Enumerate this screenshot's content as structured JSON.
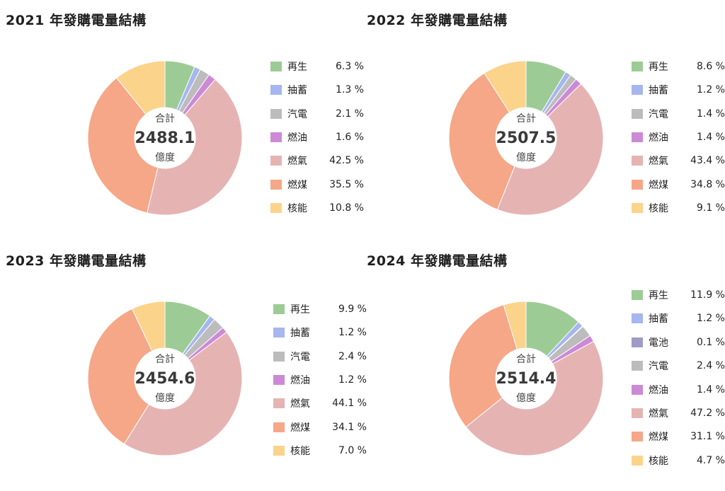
{
  "unit_caption": "合計",
  "unit_label": "億度",
  "chart_data": [
    {
      "type": "pie",
      "title": "2021 年發購電量結構",
      "total": "2488.1",
      "categories": [
        "再生",
        "抽蓄",
        "汽電",
        "燃油",
        "燃氣",
        "燃煤",
        "核能"
      ],
      "values": [
        6.3,
        1.3,
        2.1,
        1.6,
        42.5,
        35.5,
        10.8
      ],
      "labels": [
        "6.3 %",
        "1.3 %",
        "2.1 %",
        "1.6 %",
        "42.5 %",
        "35.5 %",
        "10.8 %"
      ],
      "colors": [
        "#9dcb95",
        "#a6b6ee",
        "#bcbcbc",
        "#cc8ad6",
        "#e6b3b3",
        "#f5a787",
        "#fbd38b"
      ]
    },
    {
      "type": "pie",
      "title": "2022 年發購電量結構",
      "total": "2507.5",
      "categories": [
        "再生",
        "抽蓄",
        "汽電",
        "燃油",
        "燃氣",
        "燃煤",
        "核能"
      ],
      "values": [
        8.6,
        1.2,
        1.4,
        1.4,
        43.4,
        34.8,
        9.1
      ],
      "labels": [
        "8.6 %",
        "1.2 %",
        "1.4 %",
        "1.4 %",
        "43.4 %",
        "34.8 %",
        "9.1 %"
      ],
      "colors": [
        "#9dcb95",
        "#a6b6ee",
        "#bcbcbc",
        "#cc8ad6",
        "#e6b3b3",
        "#f5a787",
        "#fbd38b"
      ]
    },
    {
      "type": "pie",
      "title": "2023 年發購電量結構",
      "total": "2454.6",
      "categories": [
        "再生",
        "抽蓄",
        "汽電",
        "燃油",
        "燃氣",
        "燃煤",
        "核能"
      ],
      "values": [
        9.9,
        1.2,
        2.4,
        1.2,
        44.1,
        34.1,
        7.0
      ],
      "labels": [
        "9.9 %",
        "1.2 %",
        "2.4 %",
        "1.2 %",
        "44.1 %",
        "34.1 %",
        "7.0 %"
      ],
      "colors": [
        "#9dcb95",
        "#a6b6ee",
        "#bcbcbc",
        "#cc8ad6",
        "#e6b3b3",
        "#f5a787",
        "#fbd38b"
      ]
    },
    {
      "type": "pie",
      "title": "2024 年發購電量結構",
      "total": "2514.4",
      "categories": [
        "再生",
        "抽蓄",
        "電池",
        "汽電",
        "燃油",
        "燃氣",
        "燃煤",
        "核能"
      ],
      "values": [
        11.9,
        1.2,
        0.1,
        2.4,
        1.4,
        47.2,
        31.1,
        4.7
      ],
      "labels": [
        "11.9 %",
        "1.2 %",
        "0.1 %",
        "2.4 %",
        "1.4 %",
        "47.2 %",
        "31.1 %",
        "4.7 %"
      ],
      "colors": [
        "#9dcb95",
        "#a6b6ee",
        "#9e9cc4",
        "#bcbcbc",
        "#cc8ad6",
        "#e6b3b3",
        "#f5a787",
        "#fbd38b"
      ]
    }
  ]
}
